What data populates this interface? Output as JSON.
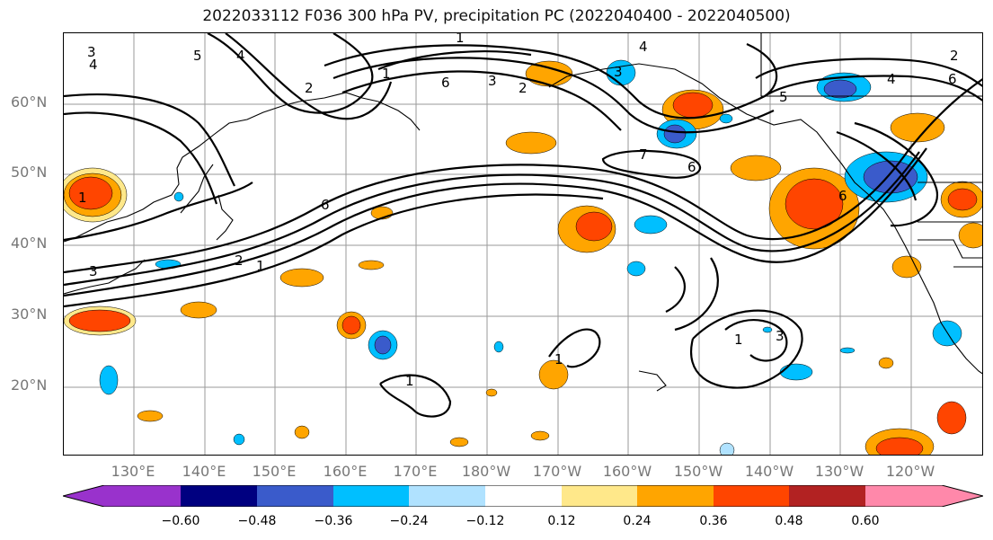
{
  "title": "2022033112 F036 300 hPa PV, precipitation PC (2022040400 - 2022040500)",
  "lat_labels": [
    "60°N",
    "50°N",
    "40°N",
    "30°N",
    "20°N"
  ],
  "lon_labels": [
    "130°E",
    "140°E",
    "150°E",
    "160°E",
    "170°E",
    "180°W",
    "170°W",
    "160°W",
    "150°W",
    "140°W",
    "130°W",
    "120°W"
  ],
  "colorbar": {
    "tick_labels": [
      "−0.60",
      "−0.48",
      "−0.36",
      "−0.24",
      "−0.12",
      "0.12",
      "0.24",
      "0.36",
      "0.48",
      "0.60"
    ],
    "colors": [
      "#9932CC",
      "#000080",
      "#3A5BCB",
      "#00BFFF",
      "#B0E2FF",
      "#FFFFFF",
      "#FFE88A",
      "#FFA500",
      "#FF4500",
      "#B22222",
      "#FF88AA"
    ]
  },
  "contour_labels": [
    "1",
    "2",
    "3",
    "4",
    "5",
    "6",
    "7"
  ]
}
